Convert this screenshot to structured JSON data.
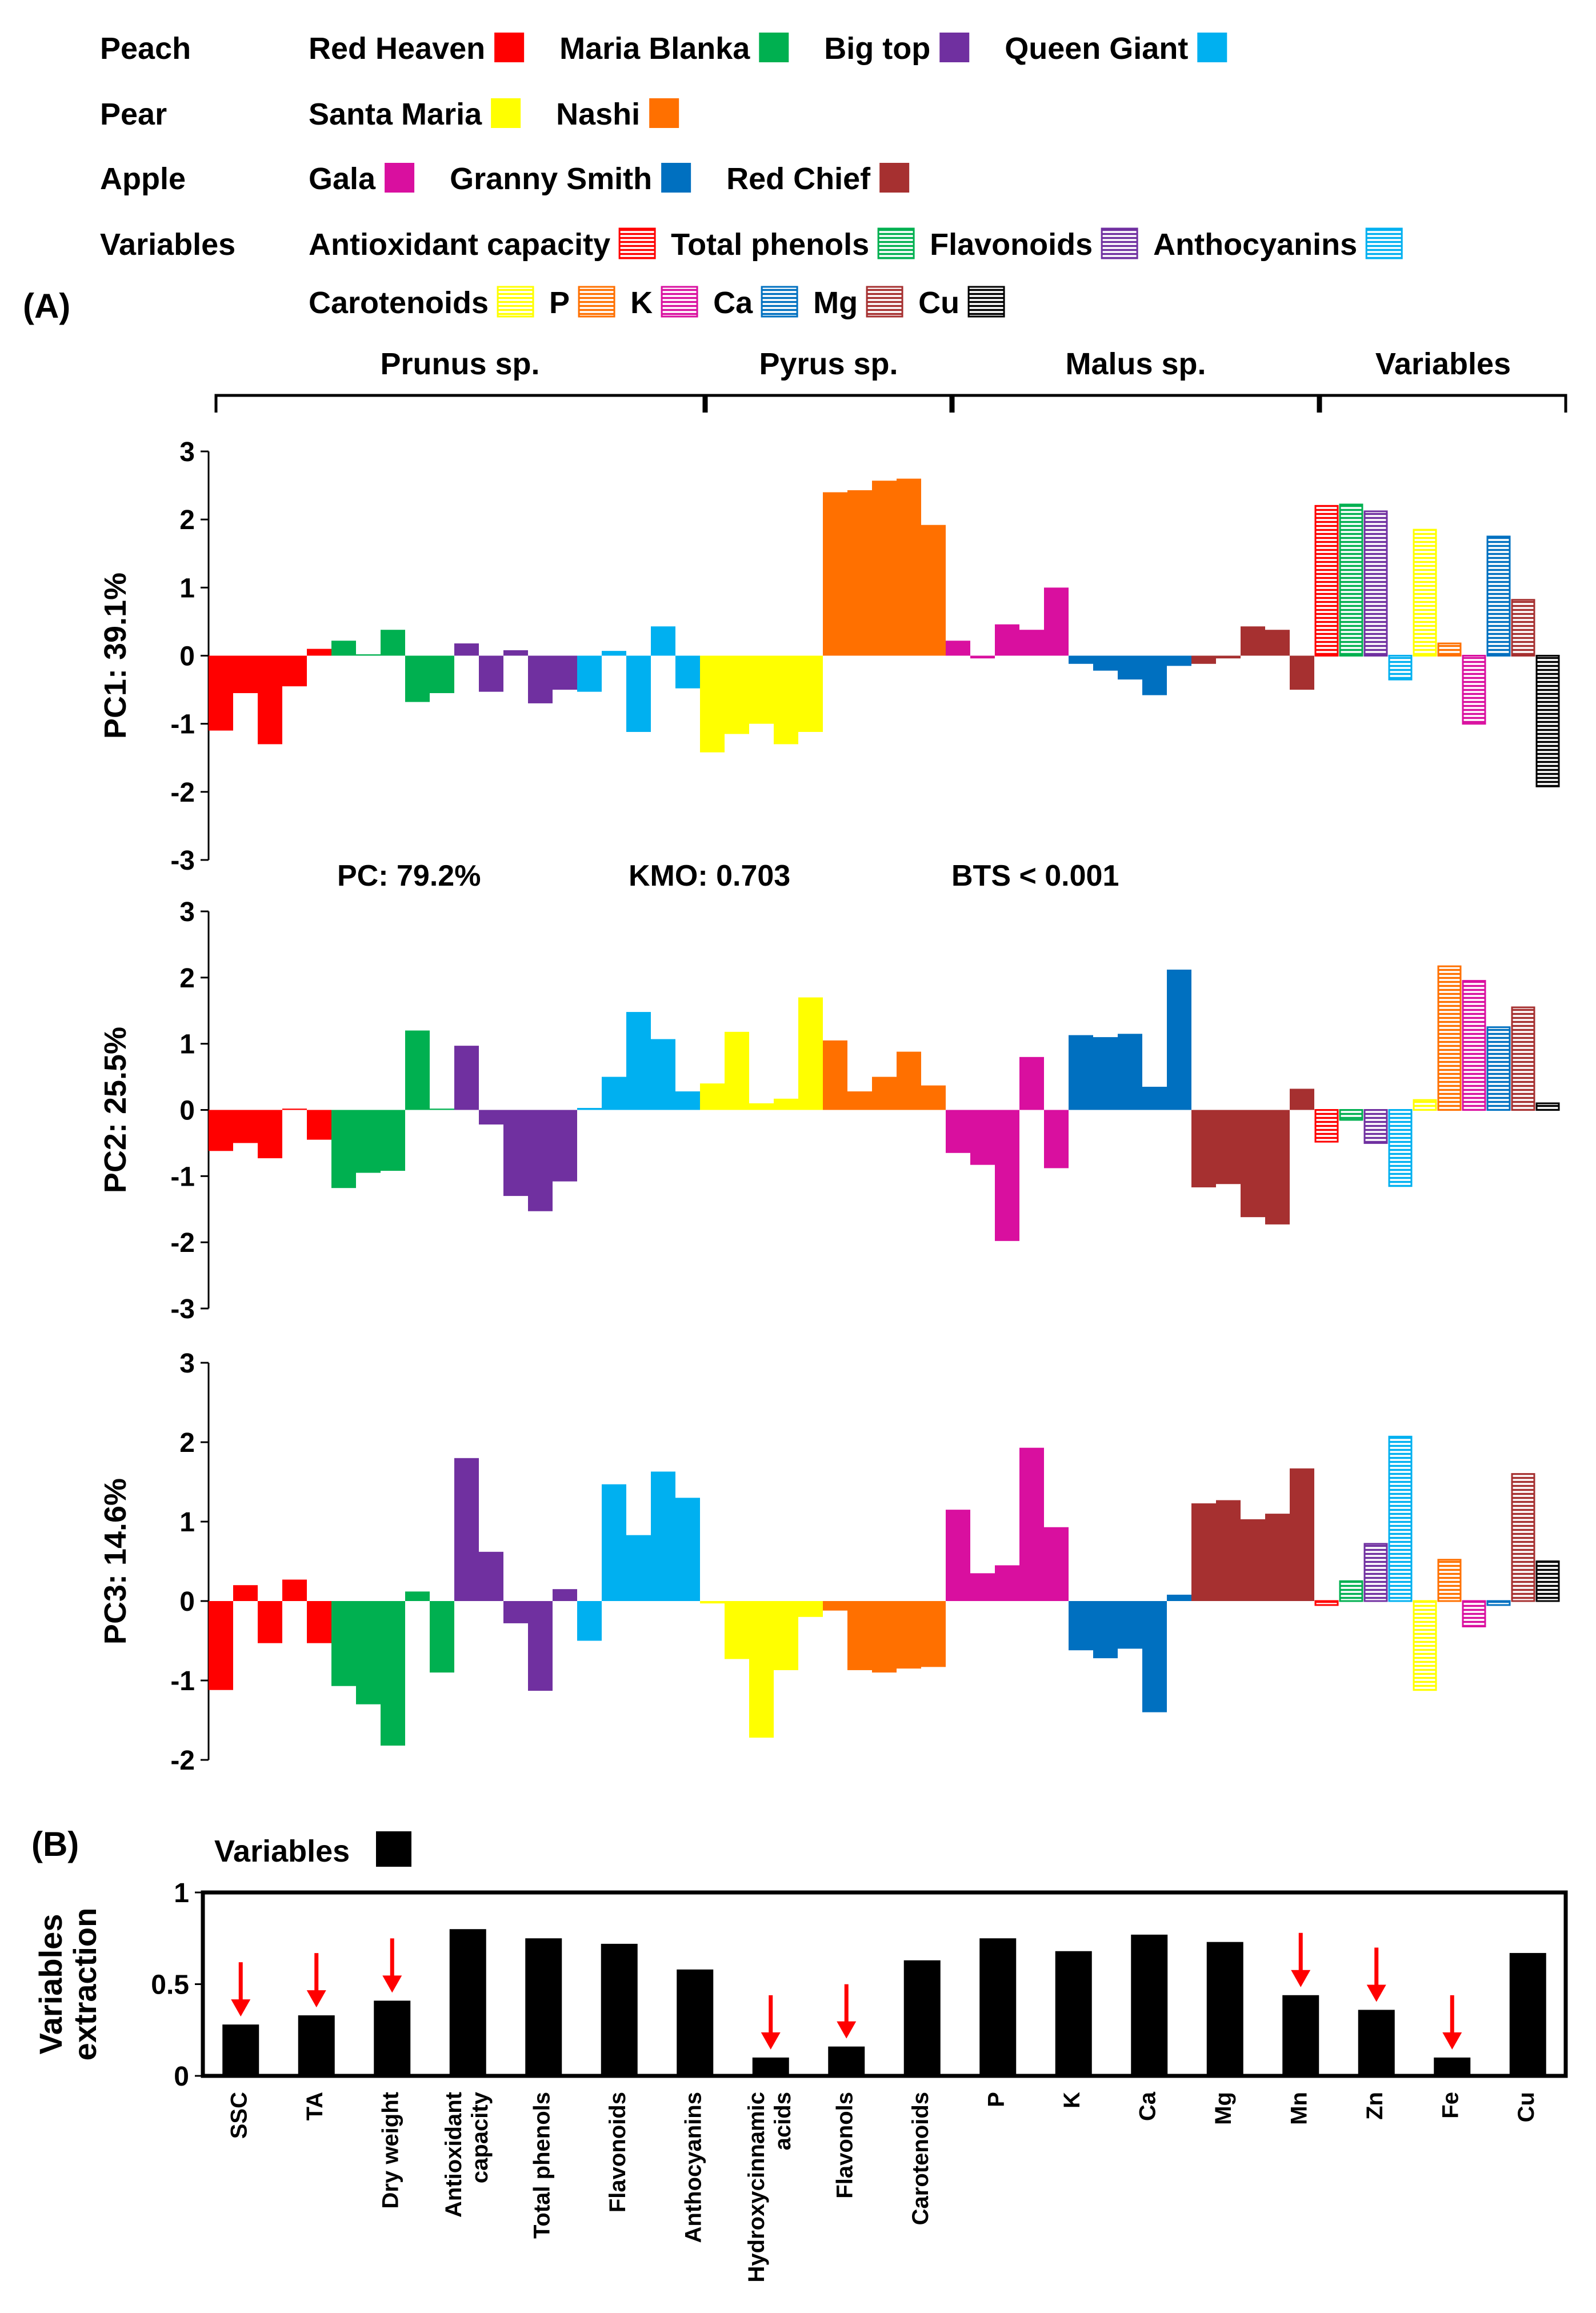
{
  "figure": {
    "panel_a_label": "(A)",
    "panel_b_label": "(B)",
    "stats": [
      "PC: 79.2%",
      "KMO: 0.703",
      "BTS < 0.001"
    ]
  },
  "legend_a": {
    "rows": [
      {
        "label": "Peach",
        "items": [
          {
            "name": "Red Heaven",
            "color": "#ff0000"
          },
          {
            "name": "Maria Blanka",
            "color": "#00b050"
          },
          {
            "name": "Big top",
            "color": "#7030a0"
          },
          {
            "name": "Queen Giant",
            "color": "#00b0f0"
          }
        ]
      },
      {
        "label": "Pear",
        "items": [
          {
            "name": "Santa Maria",
            "color": "#ffff00"
          },
          {
            "name": "Nashi",
            "color": "#ff7000"
          }
        ]
      },
      {
        "label": "Apple",
        "items": [
          {
            "name": "Gala",
            "color": "#d90f9f"
          },
          {
            "name": "Granny Smith",
            "color": "#0070c0"
          },
          {
            "name": "Red Chief",
            "color": "#a63030"
          }
        ]
      },
      {
        "label": "Variables",
        "items": [
          {
            "name": "Antioxidant capacity",
            "color": "#ff0000",
            "hatched": true
          },
          {
            "name": "Total phenols",
            "color": "#00b050",
            "hatched": true
          },
          {
            "name": "Flavonoids",
            "color": "#7030a0",
            "hatched": true
          },
          {
            "name": "Anthocyanins",
            "color": "#00b0f0",
            "hatched": true
          }
        ]
      },
      {
        "label": "",
        "items": [
          {
            "name": "Carotenoids",
            "color": "#ffff00",
            "hatched": true
          },
          {
            "name": "P",
            "color": "#ff7000",
            "hatched": true
          },
          {
            "name": "K",
            "color": "#d90f9f",
            "hatched": true
          },
          {
            "name": "Ca",
            "color": "#0070c0",
            "hatched": true
          },
          {
            "name": "Mg",
            "color": "#a63030",
            "hatched": true
          },
          {
            "name": "Cu",
            "color": "#000000",
            "hatched": true
          }
        ]
      }
    ]
  },
  "groups": [
    "Prunus sp.",
    "Pyrus sp.",
    "Malus sp.",
    "Variables"
  ],
  "chart_data": [
    {
      "type": "bar",
      "title": "",
      "ylabel": "PC1: 39.1%",
      "ylim": [
        -3,
        3
      ],
      "yticks": [
        -3,
        -2,
        -1,
        0,
        1,
        2,
        3
      ],
      "series": [
        {
          "name": "Red Heaven",
          "color": "#ff0000",
          "values": [
            -1.1,
            -0.55,
            -1.3,
            -0.45,
            0.1
          ]
        },
        {
          "name": "Maria Blanka",
          "color": "#00b050",
          "values": [
            0.22,
            0.02,
            0.38,
            -0.68,
            -0.55
          ]
        },
        {
          "name": "Big top",
          "color": "#7030a0",
          "values": [
            0.18,
            -0.53,
            0.08,
            -0.7,
            -0.5
          ]
        },
        {
          "name": "Queen Giant",
          "color": "#00b0f0",
          "values": [
            -0.53,
            0.07,
            -1.12,
            0.43,
            -0.48
          ]
        },
        {
          "name": "Santa Maria",
          "color": "#ffff00",
          "values": [
            -1.42,
            -1.15,
            -1.0,
            -1.3,
            -1.12
          ]
        },
        {
          "name": "Nashi",
          "color": "#ff7000",
          "values": [
            2.4,
            2.43,
            2.57,
            2.6,
            1.92
          ]
        },
        {
          "name": "Gala",
          "color": "#d90f9f",
          "values": [
            0.22,
            -0.04,
            0.46,
            0.38,
            1.0
          ]
        },
        {
          "name": "Granny Smith",
          "color": "#0070c0",
          "values": [
            -0.12,
            -0.22,
            -0.35,
            -0.58,
            -0.15
          ]
        },
        {
          "name": "Red Chief",
          "color": "#a63030",
          "values": [
            -0.12,
            -0.04,
            0.43,
            0.38,
            -0.5
          ]
        },
        {
          "name": "Variables",
          "hatched": true,
          "values": [
            2.2,
            2.22,
            2.12,
            -0.35,
            1.85,
            0.18,
            -1.0,
            1.75,
            0.82,
            -1.92
          ],
          "colors": [
            "#ff0000",
            "#00b050",
            "#7030a0",
            "#00b0f0",
            "#ffff00",
            "#ff7000",
            "#d90f9f",
            "#0070c0",
            "#a63030",
            "#000000"
          ]
        }
      ]
    },
    {
      "type": "bar",
      "title": "",
      "ylabel": "PC2: 25.5%",
      "ylim": [
        -3,
        3
      ],
      "yticks": [
        -3,
        -2,
        -1,
        0,
        1,
        2,
        3
      ],
      "series": [
        {
          "name": "Red Heaven",
          "color": "#ff0000",
          "values": [
            -0.62,
            -0.5,
            -0.73,
            0.02,
            -0.45
          ]
        },
        {
          "name": "Maria Blanka",
          "color": "#00b050",
          "values": [
            -1.18,
            -0.95,
            -0.92,
            1.2,
            0.02
          ]
        },
        {
          "name": "Big top",
          "color": "#7030a0",
          "values": [
            0.97,
            -0.22,
            -1.3,
            -1.53,
            -1.08
          ]
        },
        {
          "name": "Queen Giant",
          "color": "#00b0f0",
          "values": [
            0.03,
            0.5,
            1.48,
            1.07,
            0.28
          ]
        },
        {
          "name": "Santa Maria",
          "color": "#ffff00",
          "values": [
            0.4,
            1.18,
            0.1,
            0.17,
            1.7
          ]
        },
        {
          "name": "Nashi",
          "color": "#ff7000",
          "values": [
            1.05,
            0.28,
            0.5,
            0.88,
            0.37
          ]
        },
        {
          "name": "Gala",
          "color": "#d90f9f",
          "values": [
            -0.65,
            -0.83,
            -1.98,
            0.8,
            -0.88
          ]
        },
        {
          "name": "Granny Smith",
          "color": "#0070c0",
          "values": [
            1.13,
            1.1,
            1.15,
            0.35,
            2.12
          ]
        },
        {
          "name": "Red Chief",
          "color": "#a63030",
          "values": [
            -1.17,
            -1.12,
            -1.62,
            -1.73,
            0.32
          ]
        },
        {
          "name": "Variables",
          "hatched": true,
          "values": [
            -0.48,
            -0.15,
            -0.5,
            -1.15,
            0.15,
            2.17,
            1.95,
            1.25,
            1.55,
            0.1
          ],
          "colors": [
            "#ff0000",
            "#00b050",
            "#7030a0",
            "#00b0f0",
            "#ffff00",
            "#ff7000",
            "#d90f9f",
            "#0070c0",
            "#a63030",
            "#000000"
          ]
        }
      ]
    },
    {
      "type": "bar",
      "title": "",
      "ylabel": "PC3: 14.6%",
      "ylim": [
        -2,
        3
      ],
      "yticks": [
        -2,
        -1,
        0,
        1,
        2,
        3
      ],
      "series": [
        {
          "name": "Red Heaven",
          "color": "#ff0000",
          "values": [
            -1.12,
            0.2,
            -0.53,
            0.27,
            -0.53
          ]
        },
        {
          "name": "Maria Blanka",
          "color": "#00b050",
          "values": [
            -1.07,
            -1.3,
            -1.82,
            0.12,
            -0.9
          ]
        },
        {
          "name": "Big top",
          "color": "#7030a0",
          "values": [
            1.8,
            0.62,
            -0.28,
            -1.13,
            0.15
          ]
        },
        {
          "name": "Queen Giant",
          "color": "#00b0f0",
          "values": [
            -0.5,
            1.47,
            0.83,
            1.63,
            1.3
          ]
        },
        {
          "name": "Santa Maria",
          "color": "#ffff00",
          "values": [
            -0.03,
            -0.73,
            -1.72,
            -0.87,
            -0.2
          ]
        },
        {
          "name": "Nashi",
          "color": "#ff7000",
          "values": [
            -0.12,
            -0.87,
            -0.9,
            -0.85,
            -0.83
          ]
        },
        {
          "name": "Gala",
          "color": "#d90f9f",
          "values": [
            1.15,
            0.35,
            0.45,
            1.93,
            0.93
          ]
        },
        {
          "name": "Granny Smith",
          "color": "#0070c0",
          "values": [
            -0.62,
            -0.72,
            -0.6,
            -1.4,
            0.08
          ]
        },
        {
          "name": "Red Chief",
          "color": "#a63030",
          "values": [
            1.23,
            1.27,
            1.03,
            1.1,
            1.67
          ]
        },
        {
          "name": "Variables",
          "hatched": true,
          "values": [
            -0.05,
            0.25,
            0.72,
            2.07,
            -1.12,
            0.52,
            -0.32,
            -0.05,
            1.6,
            0.5
          ],
          "colors": [
            "#ff0000",
            "#00b050",
            "#7030a0",
            "#00b0f0",
            "#ffff00",
            "#ff7000",
            "#d90f9f",
            "#0070c0",
            "#a63030",
            "#000000"
          ]
        }
      ]
    },
    {
      "type": "bar",
      "title": "",
      "ylabel": "Variables extraction",
      "ylim": [
        0,
        1
      ],
      "yticks": [
        0,
        0.5,
        1
      ],
      "legend": "Variables",
      "legend_position": "top-left",
      "categories": [
        "SSC",
        "TA",
        "Dry weight",
        "Antioxidant capacity",
        "Total phenols",
        "Flavonoids",
        "Anthocyanins",
        "Hydroxycinnamic acids",
        "Flavonols",
        "Carotenoids",
        "P",
        "K",
        "Ca",
        "Mg",
        "Mn",
        "Zn",
        "Fe",
        "Cu"
      ],
      "values": [
        0.28,
        0.33,
        0.41,
        0.8,
        0.75,
        0.72,
        0.58,
        0.1,
        0.16,
        0.63,
        0.75,
        0.68,
        0.77,
        0.73,
        0.44,
        0.36,
        0.1,
        0.67
      ],
      "flagged": [
        "SSC",
        "TA",
        "Dry weight",
        "Hydroxycinnamic acids",
        "Flavonols",
        "Mn",
        "Zn",
        "Fe"
      ]
    }
  ]
}
